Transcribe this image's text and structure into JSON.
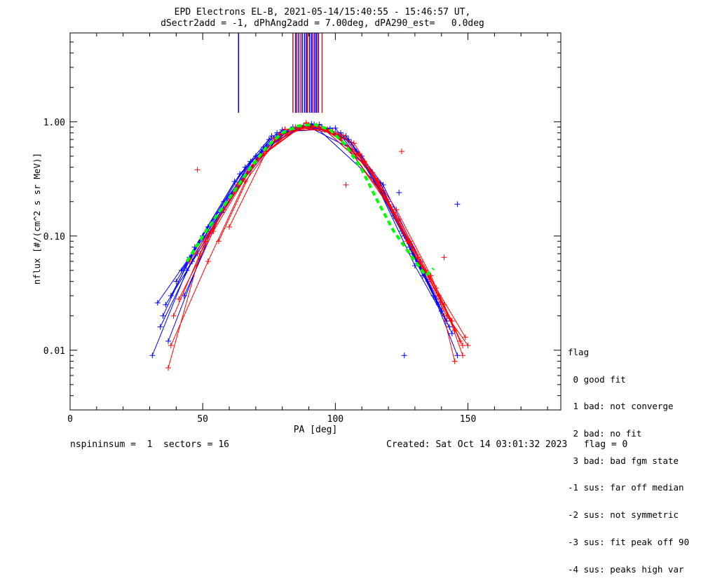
{
  "title_line1": "EPD Electrons EL-B, 2021-05-14/15:40:55 - 15:46:57 UT,",
  "title_line2": "dSectr2add = -1, dPhAng2add = 7.00deg, dPA290_est=   0.0deg",
  "footer_left": "nspininsum =  1  sectors = 16",
  "footer_right": "Created: Sat Oct 14 03:01:32 2023   flag = 0",
  "legend": {
    "title": "flag",
    "items": [
      " 0 good fit",
      " 1 bad: not converge",
      " 2 bad: no fit",
      " 3 bad: bad fgm state",
      "-1 sus: far off median",
      "-2 sus: not symmetric",
      "-3 sus: fit peak off 90",
      "-4 sus: peaks high var"
    ]
  },
  "colors": {
    "series_a": "#0000ff",
    "series_b": "#ff0000",
    "fit": "#00ff00",
    "axes": "#000000"
  },
  "chart_data": {
    "type": "line",
    "xlabel": "PA [deg]",
    "ylabel": "nflux [#/(cm^2 s sr MeV)]",
    "xlim": [
      0,
      185
    ],
    "ylim": [
      0.003,
      6.0
    ],
    "yscale": "log",
    "xticks": [
      0,
      50,
      100,
      150
    ],
    "xtick_labels": [
      "0",
      "50",
      "100",
      "150"
    ],
    "yticks": [
      0.01,
      0.1,
      1.0
    ],
    "ytick_labels": [
      "0.01",
      "0.10",
      "1.00"
    ],
    "grid": false,
    "series": [
      {
        "color": "blue",
        "marker": "+",
        "profiles": [
          {
            "x": [
              33,
              45,
              62,
              78,
              92,
              105,
              120,
              133,
              142
            ],
            "y": [
              0.026,
              0.065,
              0.3,
              0.8,
              0.95,
              0.7,
              0.2,
              0.05,
              0.018
            ]
          },
          {
            "x": [
              35,
              47,
              64,
              80,
              90,
              108,
              122,
              135,
              144
            ],
            "y": [
              0.02,
              0.08,
              0.35,
              0.85,
              0.9,
              0.55,
              0.15,
              0.04,
              0.014
            ]
          },
          {
            "x": [
              38,
              50,
              66,
              76,
              94,
              110,
              125,
              137
            ],
            "y": [
              0.03,
              0.1,
              0.4,
              0.75,
              0.95,
              0.5,
              0.11,
              0.03
            ]
          },
          {
            "x": [
              40,
              52,
              70,
              84,
              96,
              112,
              128,
              140
            ],
            "y": [
              0.04,
              0.12,
              0.5,
              0.9,
              0.85,
              0.4,
              0.08,
              0.022
            ]
          },
          {
            "x": [
              31,
              44,
              58,
              74,
              88,
              104,
              118,
              132,
              146
            ],
            "y": [
              0.009,
              0.05,
              0.2,
              0.6,
              0.92,
              0.75,
              0.28,
              0.06,
              0.009
            ]
          },
          {
            "x": [
              36,
              48,
              60,
              80,
              92,
              115,
              130,
              143
            ],
            "y": [
              0.025,
              0.07,
              0.22,
              0.8,
              0.93,
              0.3,
              0.055,
              0.016
            ]
          },
          {
            "x": [
              34,
              46,
              72,
              86,
              100,
              118,
              133
            ],
            "y": [
              0.016,
              0.06,
              0.55,
              0.88,
              0.88,
              0.25,
              0.045
            ]
          },
          {
            "x": [
              42,
              55,
              68,
              82,
              98,
              113,
              126,
              138
            ],
            "y": [
              0.05,
              0.14,
              0.45,
              0.82,
              0.87,
              0.38,
              0.1,
              0.028
            ]
          },
          {
            "x": [
              37,
              53,
              75,
              91,
              106,
              121,
              131,
              141
            ],
            "y": [
              0.012,
              0.11,
              0.7,
              0.96,
              0.66,
              0.18,
              0.06,
              0.02
            ]
          },
          {
            "x": [
              43,
              57,
              73,
              89,
              102,
              117,
              129,
              139
            ],
            "y": [
              0.03,
              0.16,
              0.6,
              0.92,
              0.8,
              0.29,
              0.07,
              0.025
            ]
          }
        ],
        "outliers": [
          {
            "x": 146,
            "y": 0.19
          },
          {
            "x": 124,
            "y": 0.24
          },
          {
            "x": 126,
            "y": 0.009
          }
        ]
      },
      {
        "color": "red",
        "marker": "+",
        "profiles": [
          {
            "x": [
              37,
              49,
              63,
              79,
              93,
              107,
              123,
              136,
              145
            ],
            "y": [
              0.007,
              0.07,
              0.28,
              0.78,
              0.93,
              0.65,
              0.17,
              0.045,
              0.015
            ]
          },
          {
            "x": [
              39,
              51,
              67,
              81,
              95,
              109,
              124,
              138,
              148
            ],
            "y": [
              0.02,
              0.09,
              0.38,
              0.86,
              0.9,
              0.52,
              0.14,
              0.035,
              0.011
            ]
          },
          {
            "x": [
              41,
              54,
              69,
              83,
              97,
              111,
              127,
              141,
              147
            ],
            "y": [
              0.028,
              0.11,
              0.42,
              0.84,
              0.86,
              0.45,
              0.09,
              0.025,
              0.012
            ]
          },
          {
            "x": [
              45,
              58,
              71,
              87,
              99,
              114,
              129,
              142,
              150
            ],
            "y": [
              0.06,
              0.17,
              0.48,
              0.9,
              0.82,
              0.36,
              0.075,
              0.02,
              0.011
            ]
          },
          {
            "x": [
              48,
              62,
              77,
              90,
              103,
              116,
              131,
              144
            ],
            "y": [
              0.07,
              0.25,
              0.72,
              0.94,
              0.76,
              0.3,
              0.065,
              0.018
            ]
          },
          {
            "x": [
              38,
              52,
              66,
              78,
              88,
              101,
              119,
              134,
              149
            ],
            "y": [
              0.011,
              0.06,
              0.3,
              0.7,
              0.88,
              0.78,
              0.21,
              0.05,
              0.013
            ]
          },
          {
            "x": [
              56,
              70,
              85,
              95,
              107,
              122,
              139,
              145
            ],
            "y": [
              0.09,
              0.45,
              0.9,
              0.9,
              0.5,
              0.16,
              0.03,
              0.008
            ]
          },
          {
            "x": [
              60,
              74,
              89,
              102,
              115,
              128,
              143,
              148
            ],
            "y": [
              0.12,
              0.55,
              0.98,
              0.72,
              0.32,
              0.09,
              0.019,
              0.009
            ]
          }
        ],
        "outliers": [
          {
            "x": 48,
            "y": 0.38
          },
          {
            "x": 125,
            "y": 0.55
          },
          {
            "x": 104,
            "y": 0.28
          },
          {
            "x": 141,
            "y": 0.065
          }
        ]
      },
      {
        "color": "green",
        "style": "dashed",
        "name": "",
        "x": [
          44,
          50,
          56,
          62,
          68,
          74,
          80,
          86,
          92,
          98,
          104,
          110,
          116,
          122,
          128,
          134,
          137
        ],
        "y": [
          0.06,
          0.1,
          0.16,
          0.25,
          0.4,
          0.6,
          0.8,
          0.92,
          0.95,
          0.85,
          0.62,
          0.38,
          0.2,
          0.11,
          0.07,
          0.045,
          0.052
        ]
      }
    ],
    "vertical_lines": [
      {
        "color": "blue",
        "x": 63.5,
        "y_from": 1.2
      },
      {
        "color": "red",
        "x": [
          84,
          85.5,
          87,
          89.5,
          91.5,
          93,
          95
        ],
        "y_from": 1.2
      },
      {
        "color": "blue",
        "x": [
          85,
          86.2,
          87.6,
          88.4,
          89.1,
          90.3,
          91,
          92.2,
          92.8,
          93.6
        ],
        "y_from": 1.2
      }
    ]
  }
}
